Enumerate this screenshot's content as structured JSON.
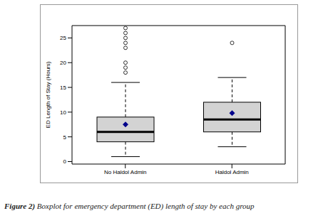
{
  "chart_data": {
    "type": "boxplot",
    "caption_label": "Figure 2)",
    "caption": "Boxplot for emergency department (ED) length of stay by each group",
    "y_label": "ED Length of Stay (Hours)",
    "categories": [
      "No Haldol Admin",
      "Haldol Admin"
    ],
    "boxes": [
      {
        "min": 1,
        "q1": 4,
        "median": 6,
        "q3": 9,
        "max": 16,
        "mean": 7.5,
        "outliers": [
          18,
          19,
          20,
          23,
          24,
          25,
          26,
          27
        ]
      },
      {
        "min": 3,
        "q1": 6,
        "median": 8.5,
        "q3": 12,
        "max": 17,
        "mean": 9.8,
        "outliers": [
          24
        ]
      }
    ],
    "color": "#d3d3d3",
    "marker": "diamond",
    "ylim": [
      -0.5,
      27.5
    ],
    "yticks": [
      0,
      5,
      10,
      15,
      20,
      25
    ]
  }
}
